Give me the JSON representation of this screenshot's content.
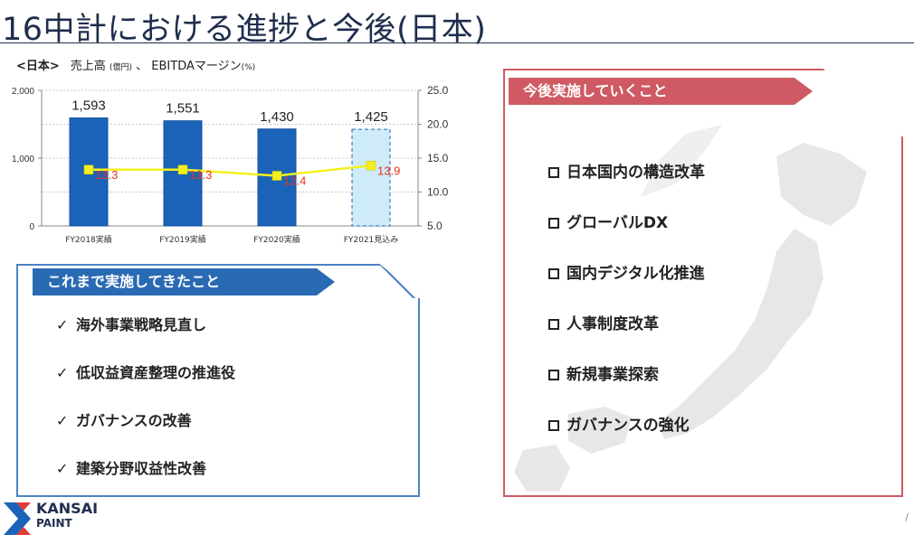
{
  "title": "16中計における進捗と今後(日本)",
  "chart_header": {
    "region": "<日本>",
    "metric1": "売上高",
    "unit1": "(億円)",
    "sep": "、",
    "metric2": "EBITDAマージン",
    "unit2": "(%)"
  },
  "chart_data": {
    "type": "bar",
    "categories": [
      "FY2018実績",
      "FY2019実績",
      "FY2020実績",
      "FY2021見込み"
    ],
    "series": [
      {
        "name": "売上高",
        "type": "bar",
        "axis": "left",
        "values": [
          1593,
          1551,
          1430,
          1425
        ],
        "labels": [
          "1,593",
          "1,551",
          "1,430",
          "1,425"
        ],
        "colors": [
          "#1b63b8",
          "#1b63b8",
          "#1b63b8",
          "#cfeaf8"
        ]
      },
      {
        "name": "EBITDAマージン",
        "type": "line",
        "axis": "right",
        "values": [
          13.3,
          13.3,
          12.4,
          13.9
        ],
        "labels": [
          "13.3",
          "13.3",
          "12.4",
          "13.9"
        ],
        "line_color": "#f4f01e",
        "label_color": "#e8341c"
      }
    ],
    "y_left": {
      "lim": [
        0,
        2000
      ],
      "ticks": [
        "0",
        "1,000",
        "2,000"
      ]
    },
    "y_right": {
      "lim": [
        5.0,
        25.0
      ],
      "ticks": [
        "5.0",
        "10.0",
        "15.0",
        "20.0",
        "25.0"
      ]
    },
    "grid": true
  },
  "done_box": {
    "heading": "これまで実施してきたこと",
    "check": "✓",
    "items": [
      "海外事業戦略見直し",
      "低収益資産整理の推進役",
      "ガバナンスの改善",
      "建築分野収益性改善"
    ]
  },
  "todo_box": {
    "heading": "今後実施していくこと",
    "items": [
      "日本国内の構造改革",
      "グローバルDX",
      "国内デジタル化推進",
      "人事制度改革",
      "新規事業探索",
      "ガバナンスの強化"
    ]
  },
  "logo": {
    "name": "KANSAI",
    "sub": "PAINT"
  },
  "page_mark": "/"
}
